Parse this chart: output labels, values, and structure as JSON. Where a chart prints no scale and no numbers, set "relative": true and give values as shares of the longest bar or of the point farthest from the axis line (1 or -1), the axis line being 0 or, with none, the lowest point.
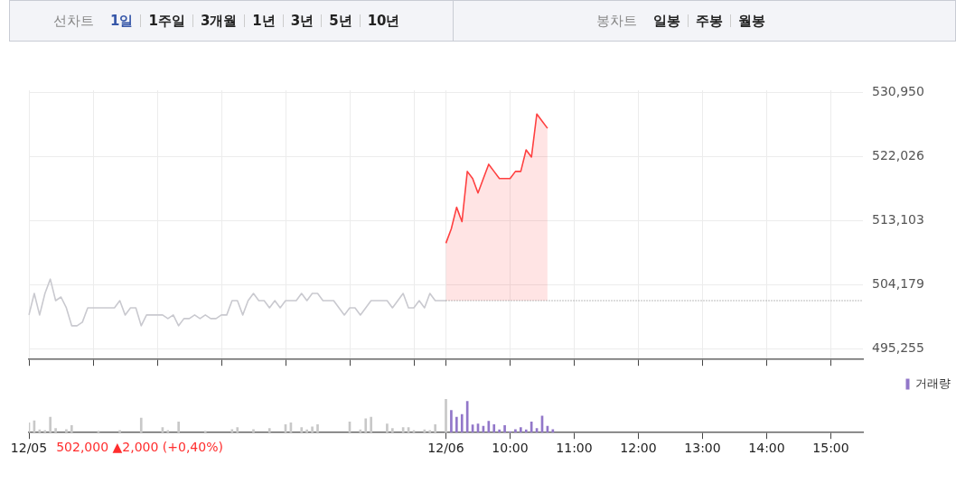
{
  "chart_data": [
    {
      "type": "other",
      "annotations": [
        "선차트",
        "1일",
        "1주일",
        "3개월",
        "1년",
        "3년",
        "5년",
        "10년",
        "봉차트",
        "일봉",
        "주봉",
        "월봉"
      ]
    },
    {
      "type": "line",
      "marker": "none",
      "grid": true,
      "categories": [
        null,
        null,
        null,
        null,
        null,
        null,
        null,
        null,
        null,
        null,
        null,
        null,
        null,
        null,
        null,
        null,
        null,
        null,
        null,
        null,
        null,
        null,
        null,
        null,
        null,
        null,
        null,
        null,
        null,
        null,
        null,
        null,
        null,
        null,
        null,
        null,
        null,
        null,
        null,
        null,
        null,
        null,
        null,
        null,
        null,
        null,
        null,
        null,
        null,
        null,
        null,
        null,
        null,
        null,
        null,
        null,
        null,
        null,
        null,
        null,
        null,
        null,
        null,
        null,
        null,
        null,
        null,
        null,
        null,
        null,
        null,
        null,
        null,
        null,
        null,
        null,
        null,
        null,
        null,
        null,
        null,
        null,
        null,
        null,
        null,
        null,
        null,
        null,
        null,
        null,
        null,
        null,
        null,
        null,
        null,
        null,
        null,
        null,
        null,
        null,
        null,
        null,
        null,
        null,
        null,
        null,
        null,
        null,
        null,
        null,
        null,
        null,
        null,
        null,
        null,
        null,
        null,
        null,
        null,
        null,
        null,
        null,
        null,
        null,
        null,
        null,
        null,
        null,
        null,
        null,
        null,
        null,
        null,
        null,
        null,
        null,
        null,
        null,
        null,
        null,
        null,
        null,
        null,
        null,
        null,
        null,
        null,
        null,
        null,
        null,
        null,
        null,
        null,
        null,
        null,
        null,
        null
      ],
      "ylim": [
        493800,
        531300
      ],
      "yticks": [
        {
          "value": 495255,
          "label": "495,255"
        },
        {
          "value": 504179,
          "label": "504,179"
        },
        {
          "value": 513103,
          "label": "513,103"
        },
        {
          "value": 522026,
          "label": "522,026"
        },
        {
          "value": 530950,
          "label": "530,950"
        }
      ],
      "ref_lines": [
        {
          "axis": "y",
          "value": 502000,
          "color": "#777777",
          "line_style": "dotted"
        }
      ],
      "series": [
        {
          "color": "#c9c9cf",
          "values": [
            500000,
            503000,
            500000,
            503000,
            505000,
            502000,
            502500,
            501000,
            498500,
            498500,
            499000,
            501000,
            501000,
            501000,
            501000,
            501000,
            501000,
            502000,
            500000,
            501000,
            501000,
            498500,
            500000,
            500000,
            500000,
            500000,
            499500,
            500000,
            498500,
            499500,
            499500,
            500000,
            499500,
            500000,
            499500,
            499500,
            500000,
            500000,
            502000,
            502000,
            500000,
            502000,
            503000,
            502000,
            502000,
            501000,
            502000,
            501000,
            502000,
            502000,
            502000,
            503000,
            502000,
            503000,
            503000,
            502000,
            502000,
            502000,
            501000,
            500000,
            501000,
            501000,
            500000,
            501000,
            502000,
            502000,
            502000,
            502000,
            501000,
            502000,
            503000,
            501000,
            501000,
            502000,
            501000,
            503000,
            502000,
            502000,
            502000,
            null,
            null,
            null,
            null,
            null,
            null,
            null,
            null,
            null,
            null,
            null,
            null,
            null,
            null,
            null,
            null,
            null,
            null,
            null,
            null,
            null,
            null,
            null,
            null,
            null,
            null,
            null,
            null,
            null,
            null,
            null,
            null,
            null,
            null,
            null,
            null,
            null,
            null,
            null,
            null,
            null,
            null,
            null,
            null,
            null,
            null,
            null,
            null,
            null,
            null,
            null,
            null,
            null,
            null,
            null,
            null,
            null,
            null,
            null,
            null,
            null,
            null,
            null,
            null,
            null,
            null,
            null,
            null,
            null,
            null,
            null,
            null,
            null,
            null,
            null,
            null,
            null,
            null
          ]
        },
        {
          "type": "area",
          "color": "#ff4040",
          "values": [
            null,
            null,
            null,
            null,
            null,
            null,
            null,
            null,
            null,
            null,
            null,
            null,
            null,
            null,
            null,
            null,
            null,
            null,
            null,
            null,
            null,
            null,
            null,
            null,
            null,
            null,
            null,
            null,
            null,
            null,
            null,
            null,
            null,
            null,
            null,
            null,
            null,
            null,
            null,
            null,
            null,
            null,
            null,
            null,
            null,
            null,
            null,
            null,
            null,
            null,
            null,
            null,
            null,
            null,
            null,
            null,
            null,
            null,
            null,
            null,
            null,
            null,
            null,
            null,
            null,
            null,
            null,
            null,
            null,
            null,
            null,
            null,
            null,
            null,
            null,
            null,
            null,
            null,
            510000,
            512000,
            515000,
            513000,
            520000,
            519000,
            517000,
            519000,
            521000,
            520000,
            519000,
            519000,
            519000,
            520000,
            520000,
            523000,
            522000,
            528000,
            527000,
            526000,
            null,
            null,
            null,
            null,
            null,
            null,
            null,
            null,
            null,
            null,
            null,
            null,
            null,
            null,
            null,
            null,
            null,
            null,
            null,
            null,
            null,
            null,
            null,
            null,
            null,
            null,
            null,
            null,
            null,
            null,
            null,
            null,
            null,
            null,
            null,
            null,
            null,
            null,
            null,
            null,
            null,
            null,
            null,
            null,
            null,
            null,
            null,
            null,
            null,
            null,
            null,
            null,
            null,
            null,
            null,
            null,
            null,
            null,
            null
          ]
        }
      ]
    },
    {
      "type": "bar",
      "relative": true,
      "tick_labels": "x",
      "legend": "top right",
      "categories": [
        "12/05",
        null,
        null,
        null,
        null,
        null,
        null,
        null,
        null,
        null,
        null,
        null,
        null,
        null,
        null,
        null,
        null,
        null,
        null,
        null,
        null,
        null,
        null,
        null,
        null,
        null,
        null,
        null,
        null,
        null,
        null,
        null,
        null,
        null,
        null,
        null,
        null,
        null,
        null,
        null,
        null,
        null,
        null,
        null,
        null,
        null,
        null,
        null,
        null,
        null,
        null,
        null,
        null,
        null,
        null,
        null,
        null,
        null,
        null,
        null,
        null,
        null,
        null,
        null,
        null,
        null,
        null,
        null,
        null,
        null,
        null,
        null,
        null,
        null,
        null,
        null,
        null,
        null,
        "12/06",
        null,
        null,
        null,
        null,
        null,
        null,
        null,
        null,
        null,
        null,
        null,
        "10:00",
        null,
        null,
        null,
        null,
        null,
        null,
        null,
        null,
        null,
        null,
        null,
        "11:00",
        null,
        null,
        null,
        null,
        null,
        null,
        null,
        null,
        null,
        null,
        null,
        "12:00",
        null,
        null,
        null,
        null,
        null,
        null,
        null,
        null,
        null,
        null,
        null,
        "13:00",
        null,
        null,
        null,
        null,
        null,
        null,
        null,
        null,
        null,
        null,
        null,
        "14:00",
        null,
        null,
        null,
        null,
        null,
        null,
        null,
        null,
        null,
        null,
        null,
        "15:00",
        null,
        null,
        null,
        null,
        null,
        null
      ],
      "annotations": [
        "502,000 ▲2,000 (+0,40%)"
      ],
      "series": [
        {
          "color": "#c8c8c8",
          "values": [
            0.3,
            0.36,
            0.09,
            0.07,
            0.47,
            0.13,
            null,
            0.1,
            0.22,
            null,
            null,
            null,
            null,
            0.05,
            null,
            null,
            null,
            0.07,
            null,
            null,
            null,
            0.44,
            null,
            null,
            null,
            0.16,
            0.07,
            null,
            0.33,
            null,
            null,
            null,
            null,
            0.05,
            null,
            null,
            null,
            null,
            0.1,
            0.16,
            null,
            null,
            0.1,
            null,
            null,
            0.13,
            null,
            null,
            0.25,
            0.3,
            null,
            0.16,
            0.09,
            0.18,
            0.25,
            null,
            null,
            null,
            null,
            null,
            0.33,
            null,
            0.09,
            0.42,
            0.47,
            null,
            null,
            0.27,
            0.13,
            null,
            0.16,
            0.16,
            0.07,
            null,
            0.09,
            0.07,
            0.25,
            null,
            1,
            null,
            null,
            null,
            null,
            null,
            null,
            null,
            null,
            null,
            null,
            null,
            null,
            null,
            null,
            null,
            null,
            null,
            null,
            null,
            null,
            null,
            null,
            null,
            null,
            null,
            null,
            null,
            null,
            null,
            null,
            null,
            null,
            null,
            null,
            null,
            null,
            null,
            null,
            null,
            null,
            null,
            null,
            null,
            null,
            null,
            null,
            null,
            null,
            null,
            null,
            null,
            null,
            null,
            null,
            null,
            null,
            null,
            null,
            null,
            null,
            null,
            null,
            null,
            null,
            null,
            null,
            null,
            null,
            null,
            null,
            null,
            null,
            null,
            null,
            null,
            null,
            null,
            null
          ]
        },
        {
          "name": "거래량",
          "color": "#9277c9",
          "values": [
            null,
            null,
            null,
            null,
            null,
            null,
            null,
            null,
            null,
            null,
            null,
            null,
            null,
            null,
            null,
            null,
            null,
            null,
            null,
            null,
            null,
            null,
            null,
            null,
            null,
            null,
            null,
            null,
            null,
            null,
            null,
            null,
            null,
            null,
            null,
            null,
            null,
            null,
            null,
            null,
            null,
            null,
            null,
            null,
            null,
            null,
            null,
            null,
            null,
            null,
            null,
            null,
            null,
            null,
            null,
            null,
            null,
            null,
            null,
            null,
            null,
            null,
            null,
            null,
            null,
            null,
            null,
            null,
            null,
            null,
            null,
            null,
            null,
            null,
            null,
            null,
            null,
            null,
            null,
            0.67,
            0.47,
            0.55,
            0.94,
            0.24,
            0.27,
            0.2,
            0.35,
            0.25,
            0.09,
            0.22,
            0.04,
            0.1,
            0.16,
            0.09,
            0.33,
            0.13,
            0.5,
            0.2,
            0.1,
            null,
            null,
            null,
            null,
            null,
            null,
            null,
            null,
            null,
            null,
            null,
            null,
            null,
            null,
            null,
            null,
            null,
            null,
            null,
            null,
            null,
            null,
            null,
            null,
            null,
            null,
            null,
            null,
            null,
            null,
            null,
            null,
            null,
            null,
            null,
            null,
            null,
            null,
            null,
            null,
            null,
            null,
            null,
            null,
            null,
            null,
            null,
            null,
            null,
            null,
            null,
            null,
            null,
            null,
            null,
            null,
            null,
            null
          ]
        }
      ]
    }
  ]
}
